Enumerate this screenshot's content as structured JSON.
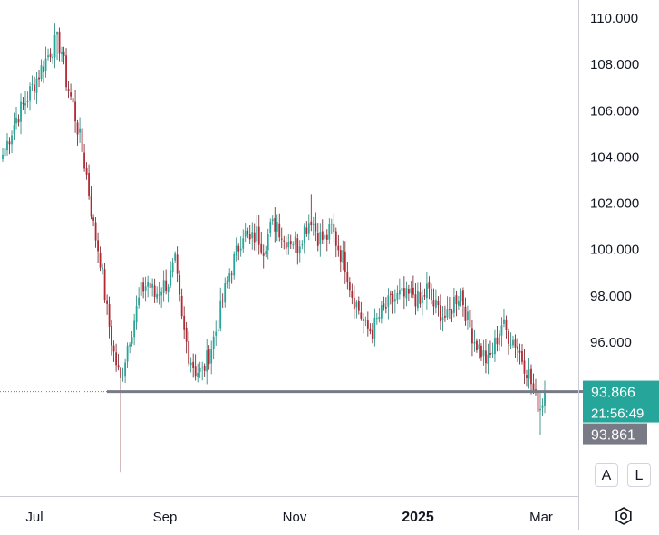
{
  "chart_data": {
    "type": "candlestick",
    "y_axis": {
      "ticks": [
        "110.000",
        "108.000",
        "106.000",
        "104.000",
        "102.000",
        "100.000",
        "98.000",
        "96.000"
      ],
      "tick_values": [
        110,
        108,
        106,
        104,
        102,
        100,
        98,
        96
      ],
      "range": [
        89.9,
        110.4
      ],
      "position": "right"
    },
    "x_axis": {
      "ticks": [
        {
          "label": "Jul",
          "bold": false
        },
        {
          "label": "Sep",
          "bold": false
        },
        {
          "label": "Nov",
          "bold": false
        },
        {
          "label": "2025",
          "bold": true
        },
        {
          "label": "Mar",
          "bold": false
        }
      ]
    },
    "horizontal_line": {
      "price": 93.866,
      "color": "#787b86"
    },
    "last_price": {
      "value": "93.866",
      "countdown": "21:56:49",
      "color": "#26a69a"
    },
    "reference_price": {
      "value": "93.861",
      "color": "#787b86"
    },
    "candle_colors": {
      "up": "#26a69a",
      "down": "#b22833"
    },
    "close_path": [
      {
        "i": 0,
        "c": 104.1
      },
      {
        "i": 3,
        "c": 104.9
      },
      {
        "i": 6,
        "c": 105.7
      },
      {
        "i": 9,
        "c": 106.2
      },
      {
        "i": 12,
        "c": 106.8
      },
      {
        "i": 15,
        "c": 107.4
      },
      {
        "i": 18,
        "c": 108.0
      },
      {
        "i": 21,
        "c": 108.6
      },
      {
        "i": 24,
        "c": 109.0
      },
      {
        "i": 26,
        "c": 108.6
      },
      {
        "i": 28,
        "c": 107.3
      },
      {
        "i": 31,
        "c": 106.2
      },
      {
        "i": 34,
        "c": 104.8
      },
      {
        "i": 37,
        "c": 103.2
      },
      {
        "i": 40,
        "c": 101.0
      },
      {
        "i": 43,
        "c": 99.6
      },
      {
        "i": 46,
        "c": 97.3
      },
      {
        "i": 49,
        "c": 95.5
      },
      {
        "i": 52,
        "c": 94.3
      },
      {
        "i": 55,
        "c": 95.9
      },
      {
        "i": 58,
        "c": 97.0
      },
      {
        "i": 61,
        "c": 98.2
      },
      {
        "i": 64,
        "c": 98.6
      },
      {
        "i": 67,
        "c": 98.0
      },
      {
        "i": 70,
        "c": 98.4
      },
      {
        "i": 73,
        "c": 98.6
      },
      {
        "i": 76,
        "c": 99.4
      },
      {
        "i": 79,
        "c": 96.9
      },
      {
        "i": 82,
        "c": 95.5
      },
      {
        "i": 85,
        "c": 94.8
      },
      {
        "i": 88,
        "c": 94.7
      },
      {
        "i": 91,
        "c": 95.5
      },
      {
        "i": 94,
        "c": 96.5
      },
      {
        "i": 97,
        "c": 97.8
      },
      {
        "i": 100,
        "c": 99.0
      },
      {
        "i": 103,
        "c": 99.8
      },
      {
        "i": 106,
        "c": 100.8
      },
      {
        "i": 109,
        "c": 100.3
      },
      {
        "i": 112,
        "c": 100.7
      },
      {
        "i": 115,
        "c": 100.1
      },
      {
        "i": 118,
        "c": 100.9
      },
      {
        "i": 121,
        "c": 101.2
      },
      {
        "i": 124,
        "c": 100.4
      },
      {
        "i": 127,
        "c": 100.5
      },
      {
        "i": 130,
        "c": 100.2
      },
      {
        "i": 133,
        "c": 100.9
      },
      {
        "i": 136,
        "c": 101.4
      },
      {
        "i": 139,
        "c": 100.6
      },
      {
        "i": 142,
        "c": 100.4
      },
      {
        "i": 145,
        "c": 100.9
      },
      {
        "i": 148,
        "c": 100.1
      },
      {
        "i": 151,
        "c": 99.4
      },
      {
        "i": 154,
        "c": 98.1
      },
      {
        "i": 157,
        "c": 97.4
      },
      {
        "i": 160,
        "c": 96.6
      },
      {
        "i": 163,
        "c": 96.5
      },
      {
        "i": 166,
        "c": 97.1
      },
      {
        "i": 169,
        "c": 97.5
      },
      {
        "i": 172,
        "c": 97.8
      },
      {
        "i": 175,
        "c": 98.0
      },
      {
        "i": 178,
        "c": 97.9
      },
      {
        "i": 181,
        "c": 98.1
      },
      {
        "i": 184,
        "c": 97.6
      },
      {
        "i": 187,
        "c": 98.3
      },
      {
        "i": 190,
        "c": 97.6
      },
      {
        "i": 193,
        "c": 97.3
      },
      {
        "i": 196,
        "c": 97.0
      },
      {
        "i": 199,
        "c": 97.8
      },
      {
        "i": 202,
        "c": 98.2
      },
      {
        "i": 205,
        "c": 96.9
      },
      {
        "i": 208,
        "c": 96.1
      },
      {
        "i": 211,
        "c": 95.6
      },
      {
        "i": 214,
        "c": 95.1
      },
      {
        "i": 217,
        "c": 95.9
      },
      {
        "i": 220,
        "c": 96.8
      },
      {
        "i": 223,
        "c": 96.3
      },
      {
        "i": 226,
        "c": 96.0
      },
      {
        "i": 229,
        "c": 95.3
      },
      {
        "i": 232,
        "c": 94.6
      },
      {
        "i": 235,
        "c": 93.5
      },
      {
        "i": 237,
        "c": 93.2
      },
      {
        "i": 239,
        "c": 93.866
      }
    ],
    "notable_candles": [
      {
        "i": 52,
        "h": 94.8,
        "l": 90.4
      },
      {
        "i": 24,
        "h": 109.4,
        "l": 108.2
      },
      {
        "i": 136,
        "h": 102.4,
        "l": 100.8
      },
      {
        "i": 237,
        "h": 93.8,
        "l": 92.0
      }
    ]
  },
  "controls": {
    "auto_label": "A",
    "log_label": "L",
    "settings_icon": "gear-icon"
  }
}
